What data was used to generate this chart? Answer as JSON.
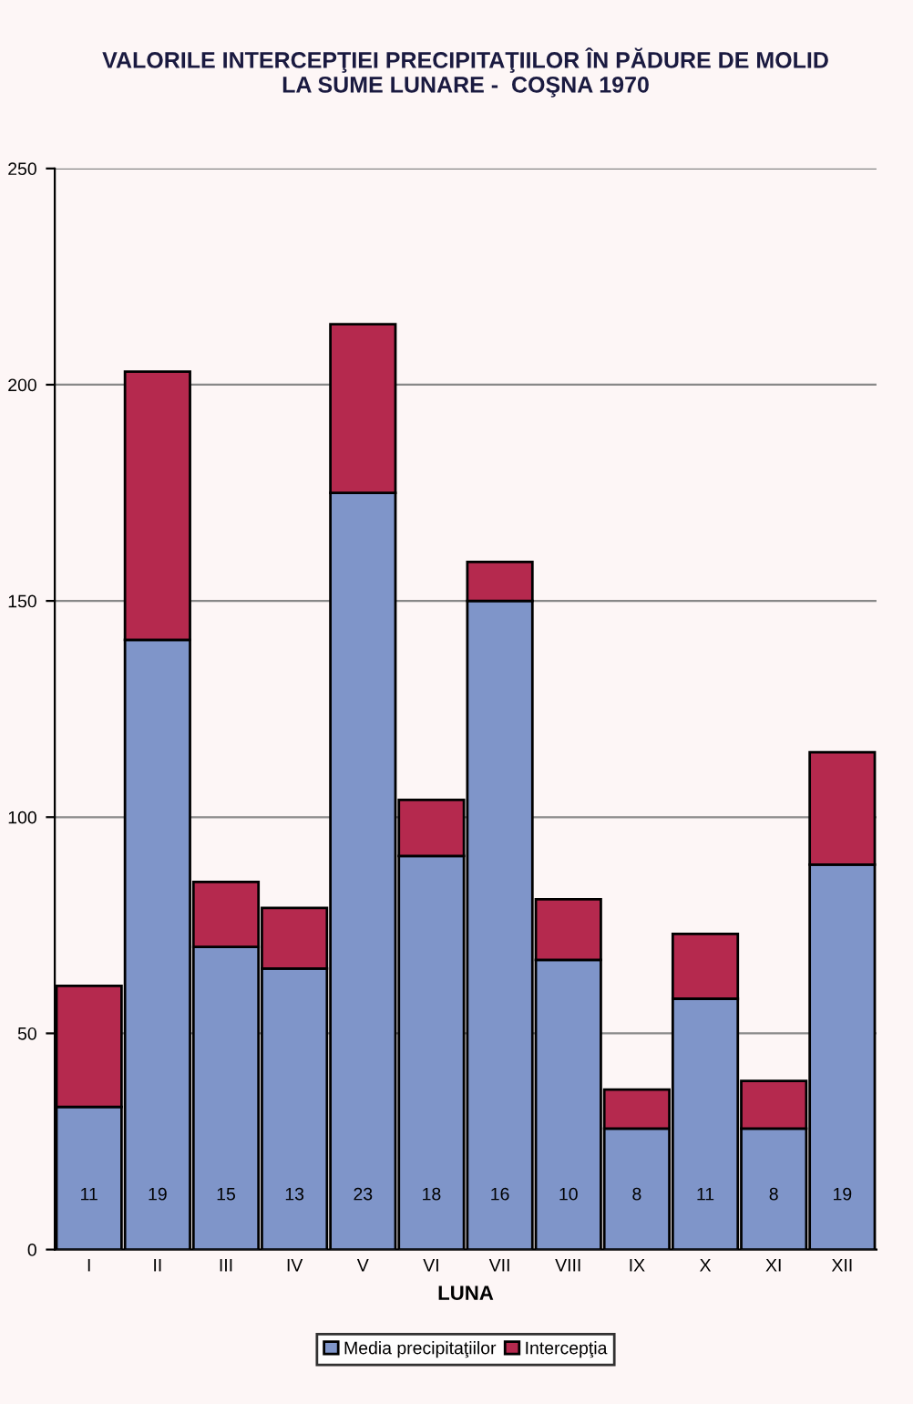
{
  "chart_data": {
    "type": "bar",
    "stacked": true,
    "title": "VALORILE INTERCEPŢIEI PRECIPITAŢIILOR ÎN PĂDURE DE MOLID\nLA SUME LUNARE -  COŞNA 1970",
    "xlabel": "LUNA",
    "categories": [
      "I",
      "II",
      "III",
      "IV",
      "V",
      "VI",
      "VII",
      "VIII",
      "IX",
      "X",
      "XI",
      "XII"
    ],
    "series": [
      {
        "name": "Media precipitaţiilor",
        "color": "#7f95c9",
        "values": [
          33,
          141,
          70,
          65,
          175,
          91,
          150,
          67,
          28,
          58,
          28,
          89
        ]
      },
      {
        "name": "Intercepţia",
        "color": "#b5294e",
        "values": [
          28,
          62,
          15,
          14,
          39,
          13,
          9,
          14,
          9,
          15,
          11,
          26
        ]
      }
    ],
    "ylim": [
      0,
      250
    ],
    "yticks": [
      0,
      50,
      100,
      150,
      200,
      250
    ],
    "grid": "y",
    "legend": "bottom",
    "annotations": [
      "11",
      "19",
      "15",
      "13",
      "23",
      "18",
      "16",
      "10",
      "8",
      "11",
      "8",
      "19"
    ]
  }
}
